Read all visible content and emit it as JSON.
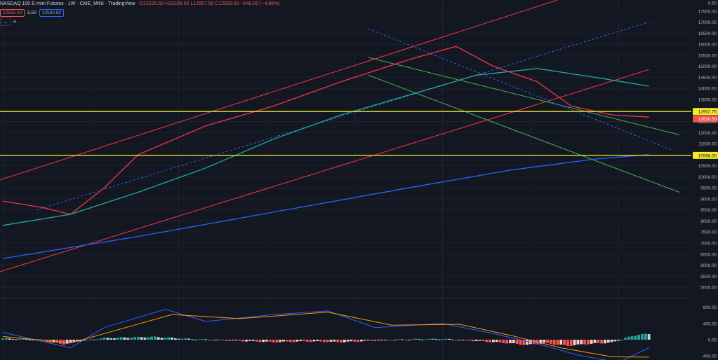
{
  "header": {
    "symbol": "NASDAQ 100 E-mini Futures",
    "interval": "1W",
    "exchange": "CME_MINI",
    "source": "TradingView",
    "open": "O13226.50",
    "high": "H13226.50",
    "low": "L12557.50",
    "close": "C12620.50",
    "change": "−648.00 (−4.88%)",
    "bid": "12555.00",
    "spread": "5.50",
    "ask": "12560.50",
    "indicator_count": "4"
  },
  "colors": {
    "bg": "#131722",
    "up": "#26a69a",
    "down": "#ef5350",
    "ma_fast": "#f23645",
    "ma_mid": "#22ab94",
    "ma_slow": "#2962ff",
    "channel": "#f23645",
    "green_line": "#4caf50",
    "dashed_blue": "#2962ff",
    "level": "#f5eb27"
  },
  "chart_data": [
    {
      "type": "candlestick",
      "title": "NASDAQ 100 E-mini Futures · 1W · CME_MINI",
      "ylim": [
        4750,
        18000
      ],
      "y_ticks": [
        5000,
        5500,
        6000,
        6500,
        7000,
        7500,
        8000,
        8500,
        9000,
        9500,
        10000,
        10500,
        11000,
        11500,
        12000,
        12500,
        13000,
        13500,
        14000,
        14500,
        15000,
        15500,
        16000,
        16500,
        17000,
        17500
      ],
      "y_tick_labels": [
        "5000.00",
        "5500.00",
        "6000.00",
        "6500.00",
        "7000.00",
        "7500.00",
        "8000.00",
        "8500.00",
        "9000.00",
        "9500.00",
        "10000.00",
        "10500.00",
        "11000.00",
        "11500.00",
        "12000.00",
        "12500.00",
        "13000.00",
        "13500.00",
        "14000.00",
        "14500.00",
        "15000.00",
        "15500.00",
        "16000.00",
        "16500.00",
        "17000.00",
        "17500.00"
      ],
      "y_top_label": "0.50",
      "key_levels": [
        {
          "value": 12952.75,
          "label": "12952.75",
          "color": "#f5eb27",
          "text_color": "#131722"
        },
        {
          "value": 10968.0,
          "label": "10968.00",
          "color": "#f5eb27",
          "text_color": "#131722"
        }
      ],
      "last_price": {
        "value": 12620.5,
        "label": "12620.50",
        "color": "#ef5350"
      },
      "key_points": [
        {
          "bar": 0,
          "close": 8800
        },
        {
          "bar": 10,
          "close": 9300
        },
        {
          "bar": 14,
          "close": 7000
        },
        {
          "bar": 20,
          "close": 8600
        },
        {
          "bar": 36,
          "close": 11300
        },
        {
          "bar": 44,
          "close": 12000
        },
        {
          "bar": 56,
          "close": 12700
        },
        {
          "bar": 67,
          "close": 13300
        },
        {
          "bar": 76,
          "close": 13700
        },
        {
          "bar": 90,
          "close": 13600
        },
        {
          "bar": 100,
          "close": 14700
        },
        {
          "bar": 108,
          "close": 15400
        },
        {
          "bar": 124,
          "close": 16200
        },
        {
          "bar": 126,
          "close": 16600
        },
        {
          "bar": 133,
          "close": 16200
        },
        {
          "bar": 140,
          "close": 15000
        },
        {
          "bar": 150,
          "close": 13800
        },
        {
          "bar": 157,
          "close": 14800
        },
        {
          "bar": 164,
          "close": 12300
        },
        {
          "bar": 170,
          "close": 11300
        },
        {
          "bar": 175,
          "close": 12300
        },
        {
          "bar": 179,
          "close": 11700
        },
        {
          "bar": 184,
          "close": 12500
        },
        {
          "bar": 188,
          "close": 13600
        },
        {
          "bar": 190,
          "close": 13200
        },
        {
          "bar": 191,
          "close": 12620.5
        }
      ],
      "moving_averages": [
        {
          "color": "#f23645",
          "points": [
            [
              0,
              8900
            ],
            [
              12,
              8600
            ],
            [
              20,
              8300
            ],
            [
              30,
              9500
            ],
            [
              40,
              11000
            ],
            [
              60,
              12300
            ],
            [
              80,
              13200
            ],
            [
              100,
              14300
            ],
            [
              120,
              15300
            ],
            [
              134,
              15900
            ],
            [
              145,
              15000
            ],
            [
              158,
              14300
            ],
            [
              168,
              13200
            ],
            [
              180,
              12800
            ],
            [
              191,
              12700
            ]
          ]
        },
        {
          "color": "#22ab94",
          "points": [
            [
              0,
              7800
            ],
            [
              20,
              8300
            ],
            [
              40,
              9300
            ],
            [
              60,
              10400
            ],
            [
              80,
              11700
            ],
            [
              100,
              12800
            ],
            [
              120,
              13700
            ],
            [
              140,
              14600
            ],
            [
              158,
              14900
            ],
            [
              175,
              14500
            ],
            [
              191,
              14100
            ]
          ]
        },
        {
          "color": "#2962ff",
          "points": [
            [
              0,
              6300
            ],
            [
              40,
              7300
            ],
            [
              80,
              8400
            ],
            [
              120,
              9500
            ],
            [
              150,
              10300
            ],
            [
              175,
              10800
            ],
            [
              191,
              11000
            ]
          ]
        }
      ],
      "trend_lines": [
        {
          "color": "#f23645",
          "points": [
            [
              -2,
              9800
            ],
            [
              166,
              18100
            ]
          ]
        },
        {
          "color": "#f23645",
          "points": [
            [
              -2,
              5650
            ],
            [
              191,
              14850
            ]
          ]
        },
        {
          "color": "#4caf50",
          "points": [
            [
              108,
              15400
            ],
            [
              200,
              11900
            ]
          ]
        },
        {
          "color": "#4caf50",
          "points": [
            [
              108,
              14600
            ],
            [
              200,
              9300
            ]
          ]
        },
        {
          "color": "#2962ff",
          "dashed": true,
          "points": [
            [
              10,
              8500
            ],
            [
              191,
              17000
            ]
          ]
        },
        {
          "color": "#2962ff",
          "dashed": true,
          "points": [
            [
              108,
              16700
            ],
            [
              198,
              11200
            ]
          ]
        }
      ]
    },
    {
      "type": "bar",
      "title": "MACD",
      "ylim": [
        -500,
        950
      ],
      "y_ticks": [
        -400,
        0,
        400,
        800
      ],
      "y_tick_labels": [
        "-400.00",
        "0.00",
        "400.00",
        "800.00"
      ],
      "histogram_points": [
        [
          0,
          30
        ],
        [
          10,
          10
        ],
        [
          14,
          -60
        ],
        [
          18,
          -110
        ],
        [
          22,
          -40
        ],
        [
          30,
          40
        ],
        [
          45,
          70
        ],
        [
          55,
          20
        ],
        [
          70,
          -30
        ],
        [
          80,
          -60
        ],
        [
          90,
          -40
        ],
        [
          100,
          -60
        ],
        [
          110,
          -20
        ],
        [
          120,
          10
        ],
        [
          130,
          20
        ],
        [
          140,
          -30
        ],
        [
          150,
          -90
        ],
        [
          155,
          -130
        ],
        [
          160,
          -80
        ],
        [
          167,
          -150
        ],
        [
          172,
          -110
        ],
        [
          180,
          -70
        ],
        [
          184,
          40
        ],
        [
          188,
          130
        ],
        [
          191,
          140
        ]
      ],
      "macd_points": [
        [
          0,
          180
        ],
        [
          20,
          -200
        ],
        [
          30,
          300
        ],
        [
          48,
          750
        ],
        [
          60,
          450
        ],
        [
          80,
          620
        ],
        [
          96,
          710
        ],
        [
          110,
          300
        ],
        [
          130,
          400
        ],
        [
          145,
          150
        ],
        [
          158,
          -100
        ],
        [
          170,
          -380
        ],
        [
          182,
          -560
        ],
        [
          191,
          -200
        ]
      ],
      "signal_points": [
        [
          0,
          80
        ],
        [
          20,
          -80
        ],
        [
          30,
          150
        ],
        [
          50,
          620
        ],
        [
          70,
          520
        ],
        [
          96,
          680
        ],
        [
          115,
          360
        ],
        [
          135,
          380
        ],
        [
          150,
          110
        ],
        [
          165,
          -200
        ],
        [
          180,
          -420
        ],
        [
          191,
          -430
        ]
      ]
    }
  ]
}
